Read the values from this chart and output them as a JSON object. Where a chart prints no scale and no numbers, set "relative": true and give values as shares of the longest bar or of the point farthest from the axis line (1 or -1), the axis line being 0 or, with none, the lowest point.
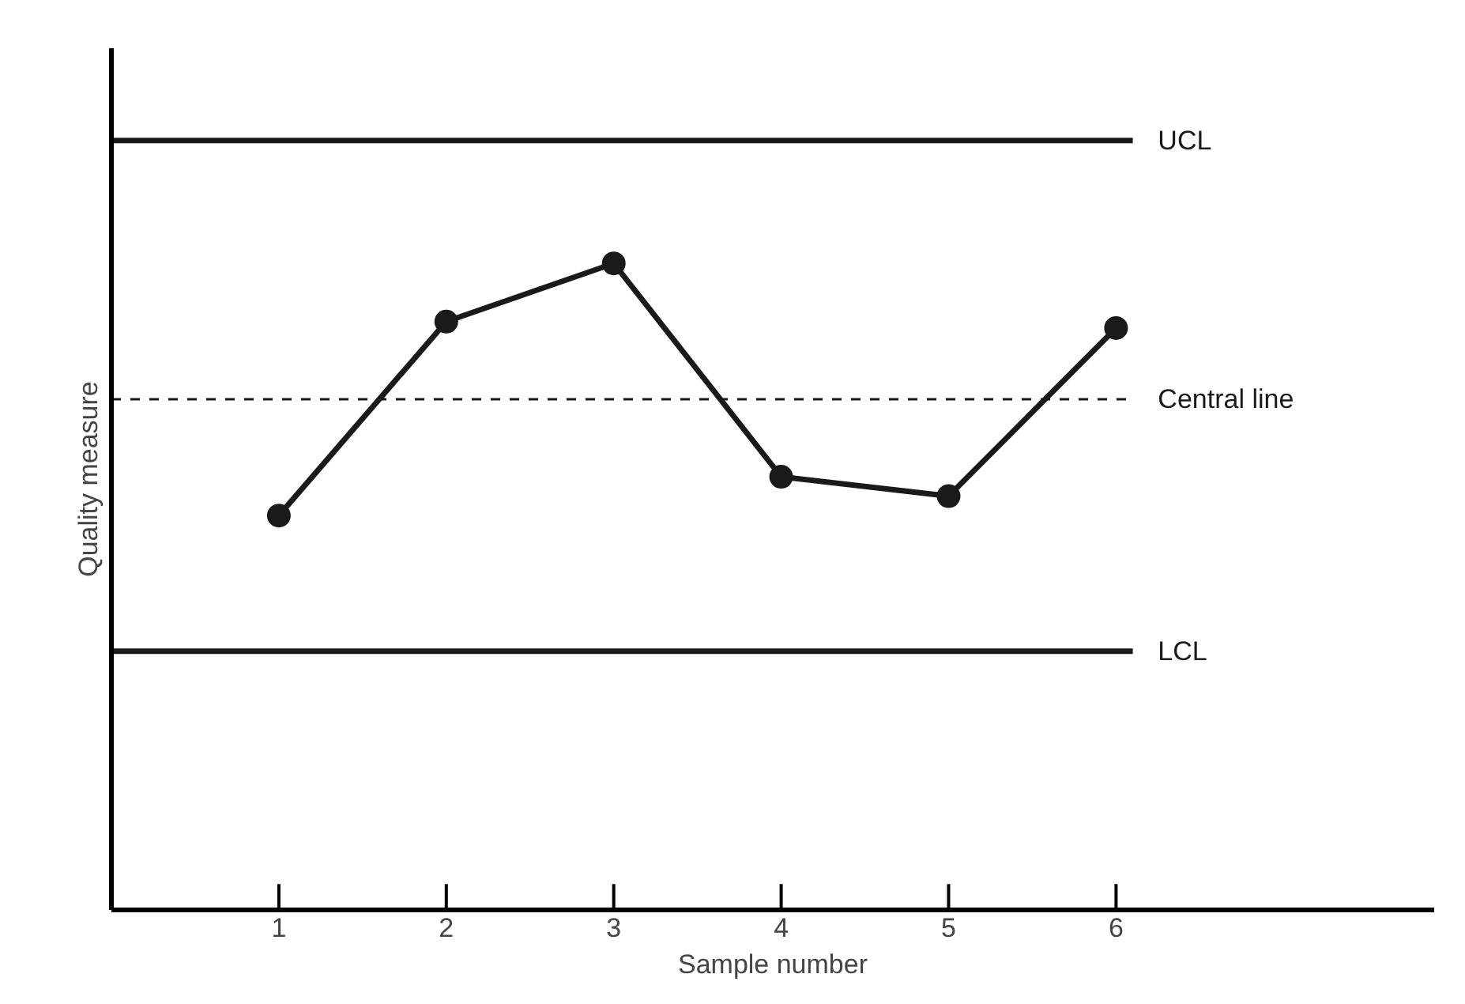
{
  "chart_data": {
    "type": "line",
    "relative": true,
    "xlabel": "Sample number",
    "ylabel": "Quality measure",
    "categories": [
      "1",
      "2",
      "3",
      "4",
      "5",
      "6"
    ],
    "series": [
      {
        "color": "#1a1a1a",
        "values": [
          0.61,
          0.91,
          1.0,
          0.67,
          0.64,
          0.9
        ]
      }
    ],
    "marker": "circle",
    "line_style": "solid",
    "ref_lines": [
      {
        "axis": "y",
        "value": 1.19,
        "label": "UCL",
        "color": "#1a1a1a",
        "line_style": "solid"
      },
      {
        "axis": "y",
        "value": 0.79,
        "label": "Central line",
        "color": "#1a1a1a",
        "line_style": "dashed"
      },
      {
        "axis": "y",
        "value": 0.4,
        "label": "LCL",
        "color": "#1a1a1a",
        "line_style": "solid"
      }
    ]
  }
}
